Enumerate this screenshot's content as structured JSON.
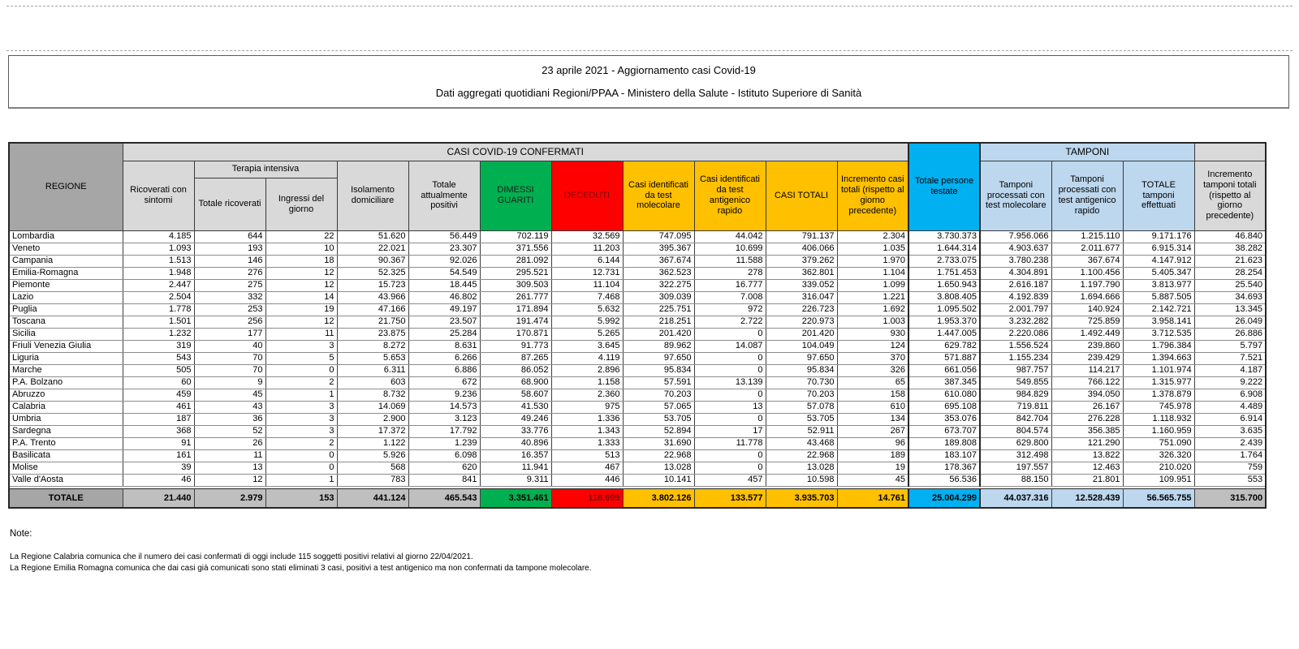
{
  "header": {
    "line1": "23 aprile 2021 - Aggiornamento casi Covid-19",
    "line2": "Dati aggregati quotidiani Regioni/PPAA - Ministero della Salute - Istituto Superiore di Sanità"
  },
  "table": {
    "group_headers": {
      "confermati": "CASI COVID-19 CONFERMATI",
      "tamponi": "TAMPONI",
      "terapia_intensiva": "Terapia intensiva"
    },
    "headers": {
      "regione": "REGIONE",
      "ricoverati_sintomi": "Ricoverati con sintomi",
      "totale_ricoverati": "Totale ricoverati",
      "ingressi_giorno": "Ingressi del giorno",
      "isolamento": "Isolamento domiciliare",
      "attualmente_positivi": "Totale attualmente positivi",
      "dimessi": "DIMESSI GUARITI",
      "deceduti": "DECEDUTI",
      "casi_molecolare": "Casi identificati da test molecolare",
      "casi_antigenico": "Casi identificati da test antigenico rapido",
      "casi_totali": "CASI TOTALI",
      "incremento_casi": "Incremento casi totali (rispetto al giorno precedente)",
      "persone_testate": "Totale persone testate",
      "tamponi_molecolare": "Tamponi processati con test molecolare",
      "tamponi_antigenico": "Tamponi processati con test antigenico rapido",
      "totale_tamponi": "TOTALE tamponi effettuati",
      "incremento_tamponi": "Incremento tamponi totali (rispetto al giorno precedente)"
    },
    "rows": [
      {
        "region": "Lombardia",
        "values": [
          "4.185",
          "644",
          "22",
          "51.620",
          "56.449",
          "702.119",
          "32.569",
          "747.095",
          "44.042",
          "791.137",
          "2.304",
          "3.730.373",
          "7.956.066",
          "1.215.110",
          "9.171.176",
          "46.840"
        ]
      },
      {
        "region": "Veneto",
        "values": [
          "1.093",
          "193",
          "10",
          "22.021",
          "23.307",
          "371.556",
          "11.203",
          "395.367",
          "10.699",
          "406.066",
          "1.035",
          "1.644.314",
          "4.903.637",
          "2.011.677",
          "6.915.314",
          "38.282"
        ]
      },
      {
        "region": "Campania",
        "values": [
          "1.513",
          "146",
          "18",
          "90.367",
          "92.026",
          "281.092",
          "6.144",
          "367.674",
          "11.588",
          "379.262",
          "1.970",
          "2.733.075",
          "3.780.238",
          "367.674",
          "4.147.912",
          "21.623"
        ]
      },
      {
        "region": "Emilia-Romagna",
        "values": [
          "1.948",
          "276",
          "12",
          "52.325",
          "54.549",
          "295.521",
          "12.731",
          "362.523",
          "278",
          "362.801",
          "1.104",
          "1.751.453",
          "4.304.891",
          "1.100.456",
          "5.405.347",
          "28.254"
        ]
      },
      {
        "region": "Piemonte",
        "values": [
          "2.447",
          "275",
          "12",
          "15.723",
          "18.445",
          "309.503",
          "11.104",
          "322.275",
          "16.777",
          "339.052",
          "1.099",
          "1.650.943",
          "2.616.187",
          "1.197.790",
          "3.813.977",
          "25.540"
        ]
      },
      {
        "region": "Lazio",
        "values": [
          "2.504",
          "332",
          "14",
          "43.966",
          "46.802",
          "261.777",
          "7.468",
          "309.039",
          "7.008",
          "316.047",
          "1.221",
          "3.808.405",
          "4.192.839",
          "1.694.666",
          "5.887.505",
          "34.693"
        ]
      },
      {
        "region": "Puglia",
        "values": [
          "1.778",
          "253",
          "19",
          "47.166",
          "49.197",
          "171.894",
          "5.632",
          "225.751",
          "972",
          "226.723",
          "1.692",
          "1.095.502",
          "2.001.797",
          "140.924",
          "2.142.721",
          "13.345"
        ]
      },
      {
        "region": "Toscana",
        "values": [
          "1.501",
          "256",
          "12",
          "21.750",
          "23.507",
          "191.474",
          "5.992",
          "218.251",
          "2.722",
          "220.973",
          "1.003",
          "1.953.370",
          "3.232.282",
          "725.859",
          "3.958.141",
          "26.049"
        ]
      },
      {
        "region": "Sicilia",
        "values": [
          "1.232",
          "177",
          "11",
          "23.875",
          "25.284",
          "170.871",
          "5.265",
          "201.420",
          "0",
          "201.420",
          "930",
          "1.447.005",
          "2.220.086",
          "1.492.449",
          "3.712.535",
          "26.886"
        ]
      },
      {
        "region": "Friuli Venezia Giulia",
        "values": [
          "319",
          "40",
          "3",
          "8.272",
          "8.631",
          "91.773",
          "3.645",
          "89.962",
          "14.087",
          "104.049",
          "124",
          "629.782",
          "1.556.524",
          "239.860",
          "1.796.384",
          "5.797"
        ]
      },
      {
        "region": "Liguria",
        "values": [
          "543",
          "70",
          "5",
          "5.653",
          "6.266",
          "87.265",
          "4.119",
          "97.650",
          "0",
          "97.650",
          "370",
          "571.887",
          "1.155.234",
          "239.429",
          "1.394.663",
          "7.521"
        ]
      },
      {
        "region": "Marche",
        "values": [
          "505",
          "70",
          "0",
          "6.311",
          "6.886",
          "86.052",
          "2.896",
          "95.834",
          "0",
          "95.834",
          "326",
          "661.056",
          "987.757",
          "114.217",
          "1.101.974",
          "4.187"
        ]
      },
      {
        "region": "P.A. Bolzano",
        "values": [
          "60",
          "9",
          "2",
          "603",
          "672",
          "68.900",
          "1.158",
          "57.591",
          "13.139",
          "70.730",
          "65",
          "387.345",
          "549.855",
          "766.122",
          "1.315.977",
          "9.222"
        ]
      },
      {
        "region": "Abruzzo",
        "values": [
          "459",
          "45",
          "1",
          "8.732",
          "9.236",
          "58.607",
          "2.360",
          "70.203",
          "0",
          "70.203",
          "158",
          "610.080",
          "984.829",
          "394.050",
          "1.378.879",
          "6.908"
        ]
      },
      {
        "region": "Calabria",
        "values": [
          "461",
          "43",
          "3",
          "14.069",
          "14.573",
          "41.530",
          "975",
          "57.065",
          "13",
          "57.078",
          "610",
          "695.108",
          "719.811",
          "26.167",
          "745.978",
          "4.489"
        ]
      },
      {
        "region": "Umbria",
        "values": [
          "187",
          "36",
          "3",
          "2.900",
          "3.123",
          "49.246",
          "1.336",
          "53.705",
          "0",
          "53.705",
          "134",
          "353.076",
          "842.704",
          "276.228",
          "1.118.932",
          "6.914"
        ]
      },
      {
        "region": "Sardegna",
        "values": [
          "368",
          "52",
          "3",
          "17.372",
          "17.792",
          "33.776",
          "1.343",
          "52.894",
          "17",
          "52.911",
          "267",
          "673.707",
          "804.574",
          "356.385",
          "1.160.959",
          "3.635"
        ]
      },
      {
        "region": "P.A. Trento",
        "values": [
          "91",
          "26",
          "2",
          "1.122",
          "1.239",
          "40.896",
          "1.333",
          "31.690",
          "11.778",
          "43.468",
          "96",
          "189.808",
          "629.800",
          "121.290",
          "751.090",
          "2.439"
        ]
      },
      {
        "region": "Basilicata",
        "values": [
          "161",
          "11",
          "0",
          "5.926",
          "6.098",
          "16.357",
          "513",
          "22.968",
          "0",
          "22.968",
          "189",
          "183.107",
          "312.498",
          "13.822",
          "326.320",
          "1.764"
        ]
      },
      {
        "region": "Molise",
        "values": [
          "39",
          "13",
          "0",
          "568",
          "620",
          "11.941",
          "467",
          "13.028",
          "0",
          "13.028",
          "19",
          "178.367",
          "197.557",
          "12.463",
          "210.020",
          "759"
        ]
      },
      {
        "region": "Valle d'Aosta",
        "values": [
          "46",
          "12",
          "1",
          "783",
          "841",
          "9.311",
          "446",
          "10.141",
          "457",
          "10.598",
          "45",
          "56.536",
          "88.150",
          "21.801",
          "109.951",
          "553"
        ]
      }
    ],
    "totals": {
      "label": "TOTALE",
      "values": [
        "21.440",
        "2.979",
        "153",
        "441.124",
        "465.543",
        "3.351.461",
        "118.699",
        "3.802.126",
        "133.577",
        "3.935.703",
        "14.761",
        "25.004.299",
        "44.037.316",
        "12.528.439",
        "56.565.755",
        "315.700"
      ]
    }
  },
  "notes": {
    "heading": "Note:",
    "lines": [
      "La Regione Calabria comunica che il numero dei casi confermati di oggi include 115 soggetti positivi relativi al giorno 22/04/2021.",
      "La Regione Emilia Romagna comunica che dai casi già comunicati sono stati eliminati 3 casi, positivi a test antigenico ma non confermati da tampone molecolare."
    ]
  },
  "colors": {
    "header_dark_gray": "#A6A6A6",
    "header_light_gray": "#D9D9D9",
    "totals_gray": "#BFBFBF",
    "green_dimessi": "#00B050",
    "red_deceduti": "#FF0000",
    "orange_casi": "#FFC000",
    "cyan_testate": "#00B0F0",
    "blue_tamponi": "#BDD7EE"
  }
}
